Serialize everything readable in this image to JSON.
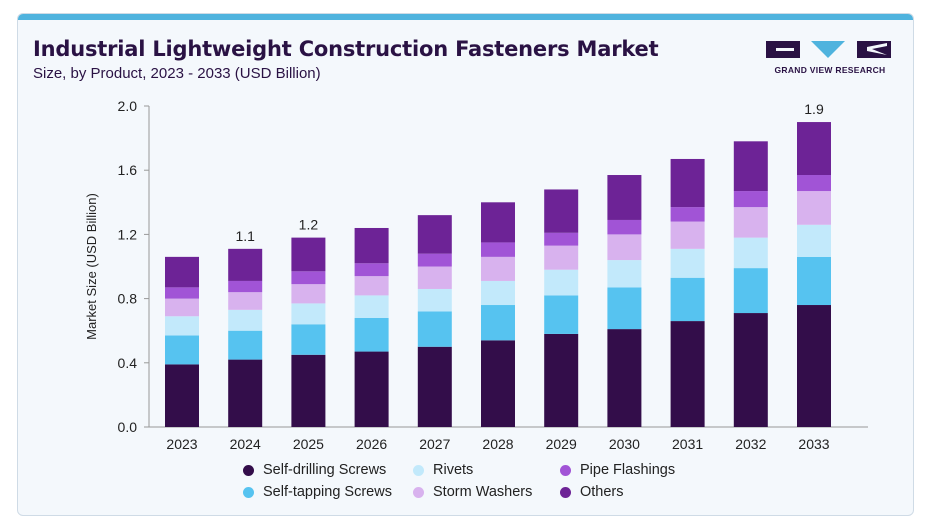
{
  "header": {
    "title": "Industrial Lightweight Construction Fasteners Market",
    "subtitle": "Size, by Product, 2023 - 2033 (USD Billion)"
  },
  "logo": {
    "text": "GRAND VIEW RESEARCH",
    "colors": {
      "dark": "#2a1244",
      "accent": "#4fb3de"
    }
  },
  "chart_data": {
    "type": "bar",
    "stacked": true,
    "title": "Industrial Lightweight Construction Fasteners Market",
    "subtitle": "Size, by Product, 2023 - 2033 (USD Billion)",
    "xlabel": "",
    "ylabel": "Market Size (USD Billion)",
    "ylim": [
      0,
      2.0
    ],
    "yticks": [
      "0.0",
      "0.4",
      "0.8",
      "1.2",
      "1.6",
      "2.0"
    ],
    "grid": false,
    "legend_position": "bottom",
    "categories": [
      "2023",
      "2024",
      "2025",
      "2026",
      "2027",
      "2028",
      "2029",
      "2030",
      "2031",
      "2032",
      "2033"
    ],
    "series": [
      {
        "name": "Self-drilling Screws",
        "color": "#330d4a",
        "values": [
          0.39,
          0.42,
          0.45,
          0.47,
          0.5,
          0.54,
          0.58,
          0.61,
          0.66,
          0.71,
          0.76
        ]
      },
      {
        "name": "Self-tapping Screws",
        "color": "#56c3f0",
        "values": [
          0.18,
          0.18,
          0.19,
          0.21,
          0.22,
          0.22,
          0.24,
          0.26,
          0.27,
          0.28,
          0.3
        ]
      },
      {
        "name": "Rivets",
        "color": "#c2e9fb",
        "values": [
          0.12,
          0.13,
          0.13,
          0.14,
          0.14,
          0.15,
          0.16,
          0.17,
          0.18,
          0.19,
          0.2
        ]
      },
      {
        "name": "Storm Washers",
        "color": "#d8b2ee",
        "values": [
          0.11,
          0.11,
          0.12,
          0.12,
          0.14,
          0.15,
          0.15,
          0.16,
          0.17,
          0.19,
          0.21
        ]
      },
      {
        "name": "Pipe Flashings",
        "color": "#a154d6",
        "values": [
          0.07,
          0.07,
          0.08,
          0.08,
          0.08,
          0.09,
          0.08,
          0.09,
          0.09,
          0.1,
          0.1
        ]
      },
      {
        "name": "Others",
        "color": "#6d2396",
        "values": [
          0.19,
          0.2,
          0.21,
          0.22,
          0.24,
          0.25,
          0.27,
          0.28,
          0.3,
          0.31,
          0.33
        ]
      }
    ],
    "annotations": [
      {
        "category": "2024",
        "text": "1.1"
      },
      {
        "category": "2025",
        "text": "1.2"
      },
      {
        "category": "2033",
        "text": "1.9"
      }
    ]
  }
}
